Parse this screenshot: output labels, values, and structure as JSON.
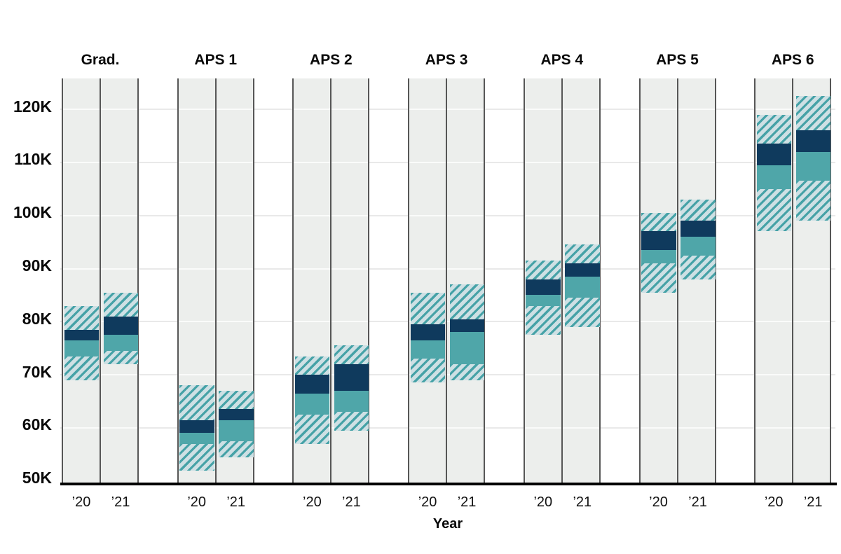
{
  "chart_data": {
    "type": "box-range",
    "title": "",
    "xlabel": "Year",
    "ylabel": "",
    "value_unit": "K",
    "grid": true,
    "legend": null,
    "y_axis": {
      "min": 50,
      "max": 126,
      "tick_values": [
        50,
        60,
        70,
        80,
        90,
        100,
        110,
        120
      ],
      "tick_labels": [
        "50K",
        "60K",
        "70K",
        "80K",
        "90K",
        "100K",
        "110K",
        "120K"
      ]
    },
    "year_labels": [
      "’20",
      "’21"
    ],
    "groups": [
      {
        "label": "Grad.",
        "series": [
          {
            "year": "’20",
            "min": 69,
            "p25": 73.5,
            "median": 76.5,
            "p75": 78.5,
            "max": 83
          },
          {
            "year": "’21",
            "min": 72,
            "p25": 74.5,
            "median": 77.5,
            "p75": 81,
            "max": 85.5
          }
        ]
      },
      {
        "label": "APS 1",
        "series": [
          {
            "year": "’20",
            "min": 52,
            "p25": 57,
            "median": 59,
            "p75": 61.5,
            "max": 68
          },
          {
            "year": "’21",
            "min": 54.5,
            "p25": 57.5,
            "median": 61.5,
            "p75": 63.5,
            "max": 67
          }
        ]
      },
      {
        "label": "APS 2",
        "series": [
          {
            "year": "’20",
            "min": 57,
            "p25": 62.5,
            "median": 66.5,
            "p75": 70,
            "max": 73.5
          },
          {
            "year": "’21",
            "min": 59.5,
            "p25": 63,
            "median": 67,
            "p75": 72,
            "max": 75.5
          }
        ]
      },
      {
        "label": "APS 3",
        "series": [
          {
            "year": "’20",
            "min": 68.5,
            "p25": 73,
            "median": 76.5,
            "p75": 79.5,
            "max": 85.5
          },
          {
            "year": "’21",
            "min": 69,
            "p25": 72,
            "median": 78,
            "p75": 80.5,
            "max": 87
          }
        ]
      },
      {
        "label": "APS 4",
        "series": [
          {
            "year": "’20",
            "min": 77.5,
            "p25": 83,
            "median": 85,
            "p75": 88,
            "max": 91.5
          },
          {
            "year": "’21",
            "min": 79,
            "p25": 84.5,
            "median": 88.5,
            "p75": 91,
            "max": 94.5
          }
        ]
      },
      {
        "label": "APS 5",
        "series": [
          {
            "year": "’20",
            "min": 85.5,
            "p25": 91,
            "median": 93.5,
            "p75": 97,
            "max": 100.5
          },
          {
            "year": "’21",
            "min": 88,
            "p25": 92.5,
            "median": 96,
            "p75": 99,
            "max": 103
          }
        ]
      },
      {
        "label": "APS 6",
        "series": [
          {
            "year": "’20",
            "min": 97,
            "p25": 105,
            "median": 109.5,
            "p75": 113.5,
            "max": 119
          },
          {
            "year": "’21",
            "min": 99,
            "p25": 106.5,
            "median": 112,
            "p75": 116,
            "max": 122.5
          }
        ]
      }
    ],
    "colors": {
      "upper_band": "#0f3a5d",
      "lower_band": "#4fa6a9",
      "hatch_stripe": "#46a2a7",
      "hatch_bg": "#cee0e4",
      "panel_bg": "#eceeec",
      "panel_border": "#565656",
      "axis": "#000000"
    },
    "band_semantics": {
      "hatch": "min-to-p25 and p75-to-max range",
      "lower_band": "p25 to median",
      "upper_band": "median to p75"
    }
  }
}
